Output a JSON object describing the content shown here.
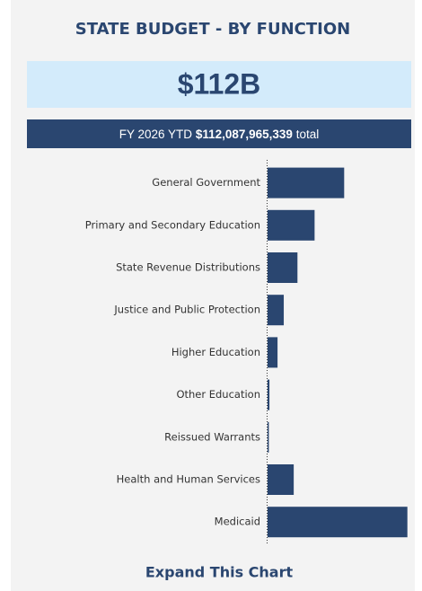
{
  "chart_data": {
    "type": "bar",
    "orientation": "horizontal",
    "title": "STATE BUDGET - BY FUNCTION",
    "kpi": "$112B",
    "subtitle_prefix": "FY 2026 YTD",
    "subtitle_total": "$112,087,965,339",
    "subtitle_suffix": "total",
    "categories": [
      "General Government",
      "Primary and Secondary Education",
      "State Revenue Distributions",
      "Justice and Public Protection",
      "Higher Education",
      "Other Education",
      "Reissued Warrants",
      "Health and Human Services",
      "Medicaid"
    ],
    "values": [
      24.6,
      15.1,
      9.6,
      5.2,
      3.2,
      0.6,
      0.4,
      8.4,
      44.9
    ],
    "color": "#2a4670",
    "xlim": [
      0,
      47
    ]
  },
  "link": "Expand This Chart"
}
